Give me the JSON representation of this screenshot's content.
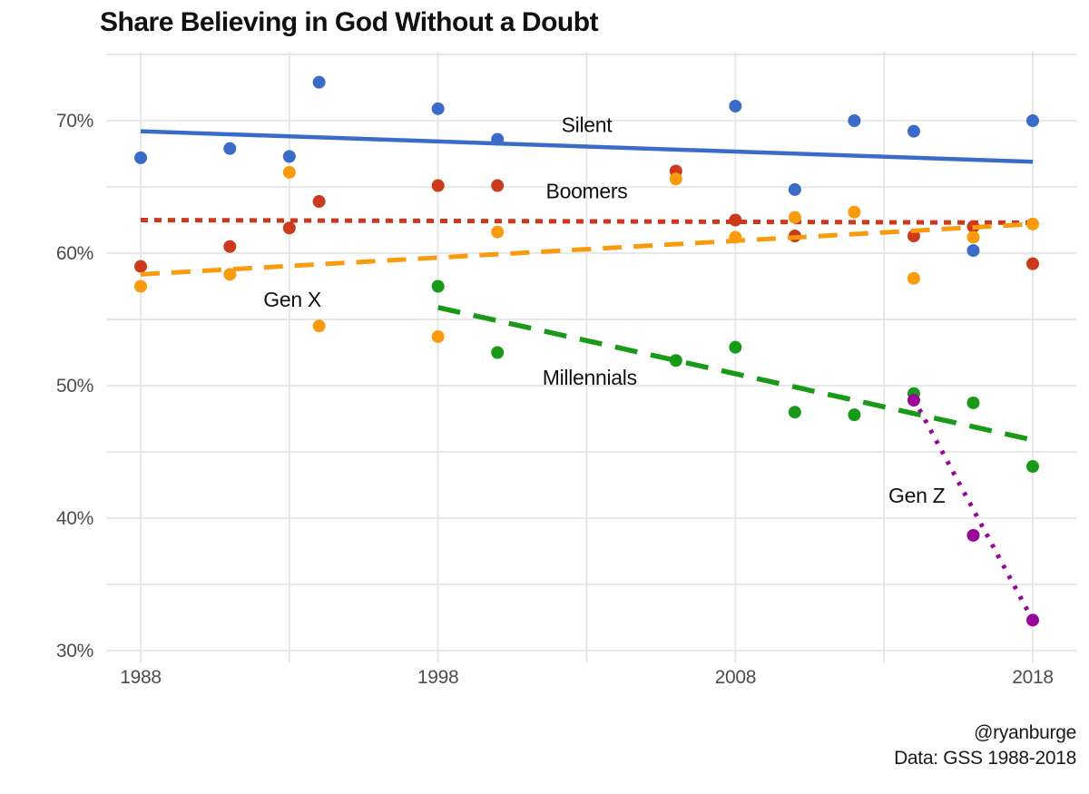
{
  "title": "Share Believing in God Without a Doubt",
  "footer": {
    "line1": "@ryanburge",
    "line2": "Data: GSS 1988-2018"
  },
  "chart_data": {
    "type": "scatter",
    "title": "Share Believing in God Without a Doubt",
    "xlabel": "",
    "ylabel": "",
    "grid": true,
    "gridline_color": "#e4e4e4",
    "xlim": [
      1986.9,
      2019.5
    ],
    "ylim": [
      29.2,
      75.2
    ],
    "x_ticks": [
      1988,
      1998,
      2008,
      2018
    ],
    "x_minor_gridlines": [
      1993,
      2003,
      2013
    ],
    "y_ticks": [
      70,
      60,
      50,
      40,
      30
    ],
    "y_minor_gridlines": [
      75,
      65,
      55,
      45,
      35
    ],
    "y_tick_suffix": "%",
    "series": [
      {
        "name": "Silent",
        "color": "#3a6bc9",
        "trend_style": "solid",
        "points": [
          [
            1988,
            67.2
          ],
          [
            1991,
            67.9
          ],
          [
            1993,
            67.3
          ],
          [
            1994,
            72.9
          ],
          [
            1998,
            70.9
          ],
          [
            2000,
            68.6
          ],
          [
            2008,
            71.1
          ],
          [
            2010,
            64.8
          ],
          [
            2012,
            70.0
          ],
          [
            2014,
            69.2
          ],
          [
            2016,
            60.2
          ],
          [
            2018,
            70.0
          ]
        ],
        "trend": [
          [
            1988,
            69.2
          ],
          [
            2018,
            66.9
          ]
        ],
        "label": {
          "text": "Silent",
          "x": 2003.0,
          "y": 69.7
        }
      },
      {
        "name": "Boomers",
        "color": "#cc3a1d",
        "trend_style": "dotted",
        "points": [
          [
            1988,
            59.0
          ],
          [
            1991,
            60.5
          ],
          [
            1993,
            61.9
          ],
          [
            1994,
            63.9
          ],
          [
            1998,
            65.1
          ],
          [
            2000,
            65.1
          ],
          [
            2006,
            66.2
          ],
          [
            2008,
            62.5
          ],
          [
            2010,
            61.3
          ],
          [
            2014,
            61.3
          ],
          [
            2016,
            62.0
          ],
          [
            2018,
            59.2
          ]
        ],
        "trend": [
          [
            1988,
            62.5
          ],
          [
            2018,
            62.3
          ]
        ],
        "label": {
          "text": "Boomers",
          "x": 2003.0,
          "y": 64.7
        }
      },
      {
        "name": "Gen X",
        "color": "#f99b0c",
        "trend_style": "dashed",
        "points": [
          [
            1988,
            57.5
          ],
          [
            1991,
            58.4
          ],
          [
            1993,
            66.1
          ],
          [
            1994,
            54.5
          ],
          [
            1998,
            53.7
          ],
          [
            2000,
            61.6
          ],
          [
            2006,
            65.6
          ],
          [
            2008,
            61.2
          ],
          [
            2010,
            62.7
          ],
          [
            2012,
            63.1
          ],
          [
            2014,
            58.1
          ],
          [
            2016,
            61.2
          ],
          [
            2018,
            62.2
          ]
        ],
        "trend": [
          [
            1988,
            58.4
          ],
          [
            2018,
            62.2
          ]
        ],
        "label": {
          "text": "Gen X",
          "x": 1993.1,
          "y": 56.5
        }
      },
      {
        "name": "Millennials",
        "color": "#189a18",
        "trend_style": "long-dash",
        "points": [
          [
            1998,
            57.5
          ],
          [
            2000,
            52.5
          ],
          [
            2006,
            51.9
          ],
          [
            2008,
            52.9
          ],
          [
            2010,
            48.0
          ],
          [
            2012,
            47.8
          ],
          [
            2014,
            49.4
          ],
          [
            2016,
            48.7
          ],
          [
            2018,
            43.9
          ]
        ],
        "trend": [
          [
            1998,
            55.9
          ],
          [
            2018,
            45.9
          ]
        ],
        "label": {
          "text": "Millennials",
          "x": 2003.1,
          "y": 50.6
        }
      },
      {
        "name": "Gen Z",
        "color": "#990799",
        "trend_style": "dotted-small",
        "points": [
          [
            2014,
            48.9
          ],
          [
            2016,
            38.7
          ],
          [
            2018,
            32.3
          ]
        ],
        "trend": [
          [
            2014,
            49.0
          ],
          [
            2018,
            32.3
          ]
        ],
        "label": {
          "text": "Gen Z",
          "x": 2014.1,
          "y": 41.7
        }
      }
    ]
  }
}
